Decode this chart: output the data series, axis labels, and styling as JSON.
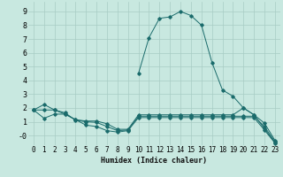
{
  "xlabel": "Humidex (Indice chaleur)",
  "xlim": [
    -0.5,
    23.5
  ],
  "ylim": [
    -0.7,
    9.7
  ],
  "yticks": [
    0,
    1,
    2,
    3,
    4,
    5,
    6,
    7,
    8,
    9
  ],
  "ytick_labels": [
    "-0",
    "1",
    "2",
    "3",
    "4",
    "5",
    "6",
    "7",
    "8",
    "9"
  ],
  "xticks": [
    0,
    1,
    2,
    3,
    4,
    5,
    6,
    7,
    8,
    9,
    10,
    11,
    12,
    13,
    14,
    15,
    16,
    17,
    18,
    19,
    20,
    21,
    22,
    23
  ],
  "bg_color": "#c8e8e0",
  "grid_color": "#a8ccc4",
  "line_color": "#1a6b6b",
  "lines": [
    {
      "x": [
        0,
        1,
        2,
        3,
        4,
        5,
        6,
        7,
        8,
        9,
        10,
        11,
        12,
        13,
        14,
        15,
        16,
        17,
        18,
        19,
        20,
        21,
        22,
        23
      ],
      "y": [
        1.85,
        2.25,
        1.85,
        1.55,
        1.15,
        1.05,
        1.05,
        0.85,
        0.45,
        0.45,
        1.5,
        1.5,
        1.5,
        1.5,
        1.5,
        1.5,
        1.5,
        1.5,
        1.5,
        1.5,
        2.0,
        1.5,
        0.9,
        -0.35
      ]
    },
    {
      "x": [
        0,
        1,
        2,
        3,
        4,
        5,
        6,
        7,
        8,
        9,
        10,
        11,
        12,
        13,
        14,
        15,
        16,
        17,
        18,
        19,
        20,
        21,
        22,
        23
      ],
      "y": [
        1.85,
        1.25,
        1.55,
        1.55,
        1.15,
        0.75,
        0.65,
        0.35,
        0.25,
        0.35,
        1.3,
        1.3,
        1.3,
        1.3,
        1.3,
        1.3,
        1.3,
        1.3,
        1.3,
        1.3,
        1.3,
        1.3,
        0.4,
        -0.55
      ]
    },
    {
      "x": [
        10,
        11,
        12,
        13,
        14,
        15,
        16,
        17,
        18,
        19,
        20,
        21,
        22,
        23
      ],
      "y": [
        4.5,
        7.1,
        8.5,
        8.6,
        9.0,
        8.7,
        8.0,
        5.3,
        3.3,
        2.85,
        2.0,
        1.5,
        0.5,
        -0.5
      ]
    },
    {
      "x": [
        0,
        1,
        2,
        3,
        4,
        5,
        6,
        7,
        8,
        9,
        10,
        11,
        12,
        13,
        14,
        15,
        16,
        17,
        18,
        19,
        20,
        21,
        22,
        23
      ],
      "y": [
        1.85,
        1.85,
        1.85,
        1.65,
        1.1,
        1.0,
        0.95,
        0.65,
        0.35,
        0.4,
        1.4,
        1.4,
        1.4,
        1.4,
        1.4,
        1.4,
        1.4,
        1.4,
        1.4,
        1.4,
        1.4,
        1.4,
        0.65,
        -0.45
      ]
    }
  ]
}
